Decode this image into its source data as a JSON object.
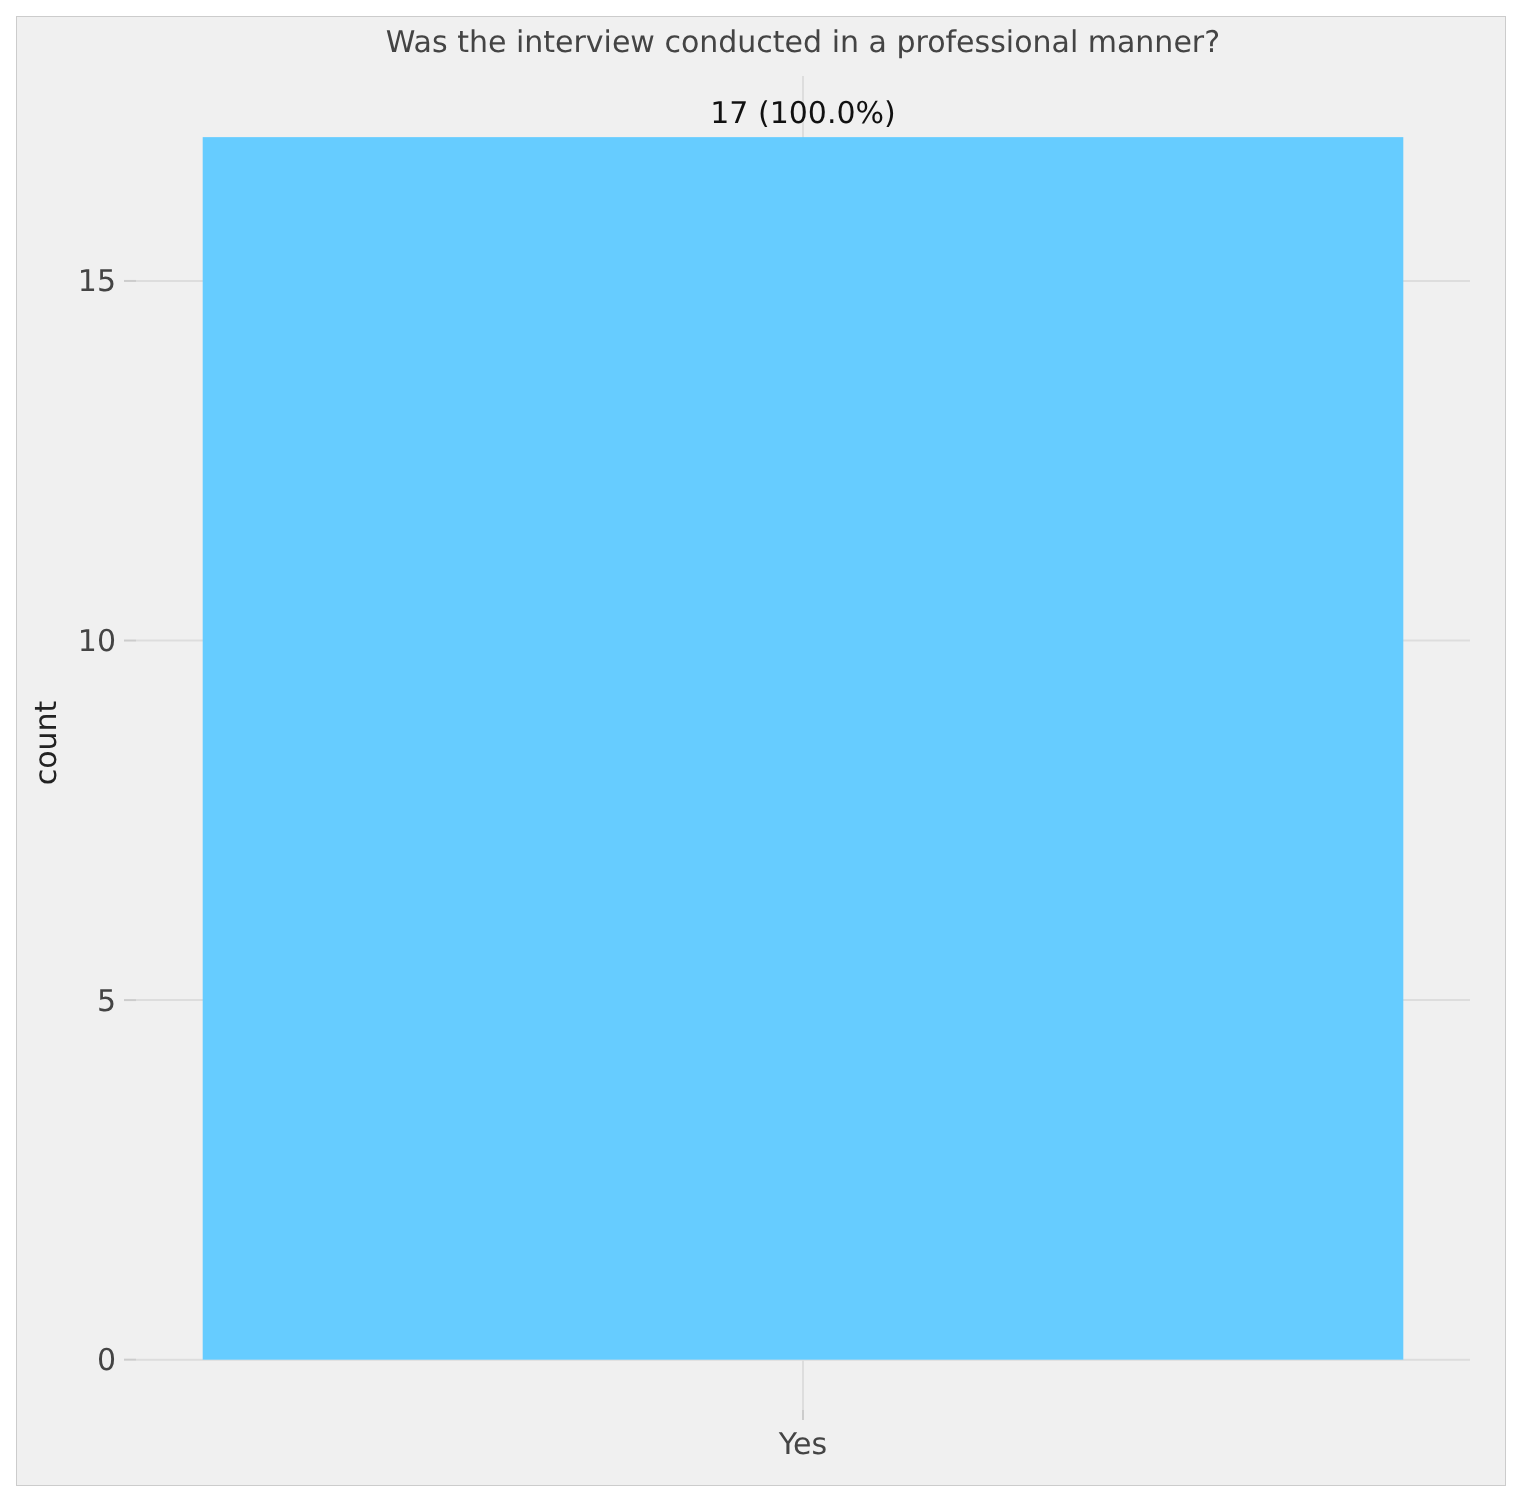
{
  "chart_data": {
    "type": "bar",
    "title": "Was the interview conducted in a professional manner?",
    "ylabel": "count",
    "categories": [
      "Yes"
    ],
    "values": [
      17
    ],
    "value_labels": [
      "17 (100.0%)"
    ],
    "color": "#66ccff",
    "ylim": [
      -0.7,
      17.85
    ],
    "yticks": [
      0,
      5,
      10,
      15
    ],
    "grid": true
  }
}
